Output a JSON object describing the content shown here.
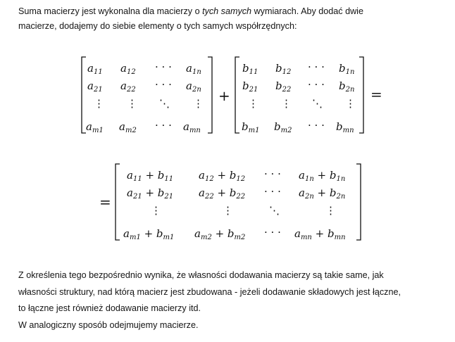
{
  "intro": {
    "line1_before": "Suma macierzy jest wykonalna dla macierzy o ",
    "line1_italic": "tych samych",
    "line1_after": " wymiarach. Aby dodać dwie",
    "line2": "macierze, dodajemy do siebie elementy o tych samych współrzędnych:"
  },
  "equation": {
    "plus": "+",
    "equals": "=",
    "hdots": "· · ·",
    "vdots": "⋮",
    "ddots": "⋱"
  },
  "outro": {
    "line1": "Z określenia tego bezpośrednio wynika, że własności dodawania macierzy są takie same, jak",
    "line2": "własności struktury, nad którą macierz jest zbudowana - jeżeli dodawanie składowych jest łączne,",
    "line3": "to łączne jest również dodawanie macierzy itd.",
    "line4": "W analogiczny sposób odejmujemy macierze."
  }
}
